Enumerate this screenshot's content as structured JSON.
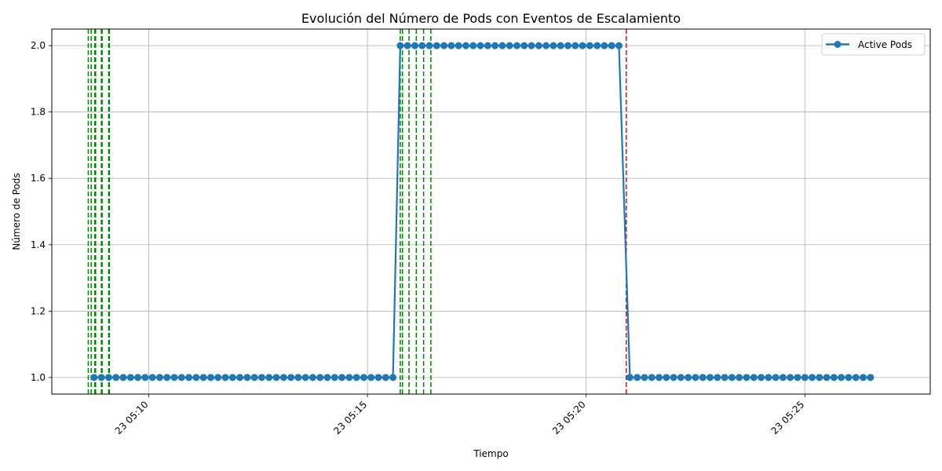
{
  "chart_data": {
    "type": "line",
    "title": "Evolución del Número de Pods con Eventos de Escalamiento",
    "xlabel": "Tiempo",
    "ylabel": "Número de Pods",
    "x_unit": "time (HH:MM:SS, day 23)",
    "xlim": [
      "05:07:47",
      "05:27:52"
    ],
    "ylim": [
      0.95,
      2.05
    ],
    "x_ticks": [
      {
        "value": "05:10:00",
        "label": "23 05:10"
      },
      {
        "value": "05:15:00",
        "label": "23 05:15"
      },
      {
        "value": "05:20:00",
        "label": "23 05:20"
      },
      {
        "value": "05:25:00",
        "label": "23 05:25"
      }
    ],
    "y_ticks": [
      1.0,
      1.2,
      1.4,
      1.6,
      1.8,
      2.0
    ],
    "y_tick_labels": [
      "1.0",
      "1.2",
      "1.4",
      "1.6",
      "1.8",
      "2.0"
    ],
    "grid": true,
    "legend_position": "top-right",
    "series": [
      {
        "name": "Active Pods",
        "color": "#1f77b4",
        "marker": "circle",
        "segments": [
          {
            "start": "05:08:45",
            "end": "05:15:40",
            "step_seconds": 10,
            "value": 1
          },
          {
            "start": "05:15:45",
            "end": "05:20:50",
            "step_seconds": 10,
            "value": 2
          },
          {
            "start": "05:21:00",
            "end": "05:26:35",
            "step_seconds": 10,
            "value": 1
          }
        ]
      }
    ],
    "event_lines": [
      {
        "time": "05:08:37",
        "color": "#008000",
        "kind": "scale-up"
      },
      {
        "time": "05:08:41",
        "color": "#008000",
        "kind": "scale-up"
      },
      {
        "time": "05:08:46",
        "color": "#008000",
        "kind": "scale-up"
      },
      {
        "time": "05:08:47",
        "color": "#008000",
        "kind": "scale-up"
      },
      {
        "time": "05:08:55",
        "color": "#008000",
        "kind": "scale-up"
      },
      {
        "time": "05:08:56",
        "color": "#008000",
        "kind": "scale-up"
      },
      {
        "time": "05:09:05",
        "color": "#008000",
        "kind": "scale-up"
      },
      {
        "time": "05:09:06",
        "color": "#008000",
        "kind": "scale-up"
      },
      {
        "time": "05:15:45",
        "color": "#008000",
        "kind": "scale-up"
      },
      {
        "time": "05:15:48",
        "color": "#008000",
        "kind": "scale-up"
      },
      {
        "time": "05:15:57",
        "color": "#008000",
        "kind": "scale-up"
      },
      {
        "time": "05:16:07",
        "color": "#008000",
        "kind": "scale-up"
      },
      {
        "time": "05:16:17",
        "color": "#008000",
        "kind": "scale-up"
      },
      {
        "time": "05:16:27",
        "color": "#008000",
        "kind": "scale-up"
      },
      {
        "time": "05:20:55",
        "color": "#ff0000",
        "kind": "scale-down"
      }
    ]
  }
}
